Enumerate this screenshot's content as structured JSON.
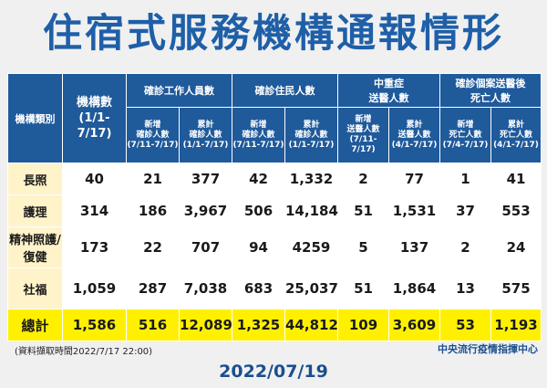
{
  "title": "住宿式服務機構通報情形",
  "headers": {
    "category": "機構類別",
    "institutions": "機構數\n(1/1-7/17)",
    "staff_group": "確診工作人員數",
    "residents_group": "確診住民人數",
    "severe_group": "中重症\n送醫人數",
    "deaths_group": "確診個案送醫後\n死亡人數",
    "staff_new": "新增\n確診人數\n(7/11-7/17)",
    "staff_total": "累計\n確診人數\n(1/1-7/17)",
    "res_new": "新增\n確診人數\n(7/11-7/17)",
    "res_total": "累計\n確診人數\n(1/1-7/17)",
    "sev_new": "新增\n送醫人數\n(7/11-7/17)",
    "sev_total": "累計\n送醫人數\n(4/1-7/17)",
    "death_new": "新增\n死亡人數\n(7/4-7/17)",
    "death_total": "累計\n死亡人數\n(4/1-7/17)"
  },
  "rows": [
    {
      "category": "長照",
      "values": [
        "40",
        "21",
        "377",
        "42",
        "1,332",
        "2",
        "77",
        "1",
        "41"
      ]
    },
    {
      "category": "護理",
      "values": [
        "314",
        "186",
        "3,967",
        "506",
        "14,184",
        "51",
        "1,531",
        "37",
        "553"
      ]
    },
    {
      "category": "精神照護/\n復健",
      "values": [
        "173",
        "22",
        "707",
        "94",
        "4259",
        "5",
        "137",
        "2",
        "24"
      ]
    },
    {
      "category": "社福",
      "values": [
        "1,059",
        "287",
        "7,038",
        "683",
        "25,037",
        "51",
        "1,864",
        "13",
        "575"
      ]
    },
    {
      "category": "總計",
      "values": [
        "1,586",
        "516",
        "12,089",
        "1,325",
        "44,812",
        "109",
        "3,609",
        "53",
        "1,193"
      ]
    }
  ],
  "note": "(資料擷取時間2022/7/17 22:00)",
  "source": "中央流行疫情指揮中心",
  "date": "2022/07/19",
  "colors": {
    "title": "#1f5fa8",
    "header_bg": "#1f5a9b",
    "category_bg": "#fff3c9",
    "total_bg": "#fff000",
    "background": "#f0f0f0"
  }
}
